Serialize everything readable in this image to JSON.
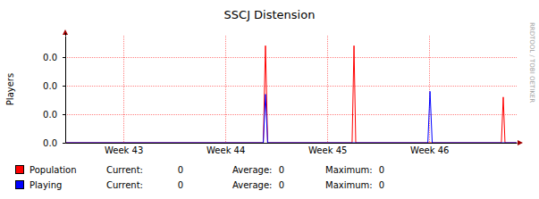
{
  "chart_data": {
    "type": "line",
    "title": "SSCJ Distension",
    "credit": "RRDTOOL / TOBI OETIKER",
    "ylabel": "Players",
    "x": [
      0,
      13.6,
      13.75,
      13.9,
      19.7,
      19.83,
      19.95,
      24.9,
      25.05,
      25.2,
      29.95,
      30.08,
      30.2,
      31
    ],
    "xlim": [
      0,
      31
    ],
    "xticks": [
      {
        "value": 4,
        "label": "Week 43"
      },
      {
        "value": 11,
        "label": "Week 44"
      },
      {
        "value": 18,
        "label": "Week 45"
      },
      {
        "value": 25,
        "label": "Week 46"
      }
    ],
    "ylim": [
      0,
      0.0375
    ],
    "yticks": [
      {
        "value": 0,
        "label": "0.0"
      },
      {
        "value": 0.01,
        "label": "0.0"
      },
      {
        "value": 0.02,
        "label": "0.0"
      },
      {
        "value": 0.03,
        "label": "0.0"
      }
    ],
    "grid": true,
    "stat_labels": [
      "Current:",
      "Average:",
      "Maximum:"
    ],
    "series": [
      {
        "name": "Population",
        "color": "#ff0000",
        "values": [
          0,
          0,
          0.034,
          0,
          0,
          0.034,
          0,
          0,
          0,
          0,
          0,
          0.016,
          0,
          0
        ],
        "stats": [
          0,
          0,
          0
        ]
      },
      {
        "name": "Playing",
        "color": "#0000ff",
        "values": [
          0,
          0,
          0.017,
          0,
          0,
          0,
          0,
          0,
          0.018,
          0,
          0,
          0,
          0,
          0
        ],
        "stats": [
          0,
          0,
          0
        ]
      }
    ]
  }
}
